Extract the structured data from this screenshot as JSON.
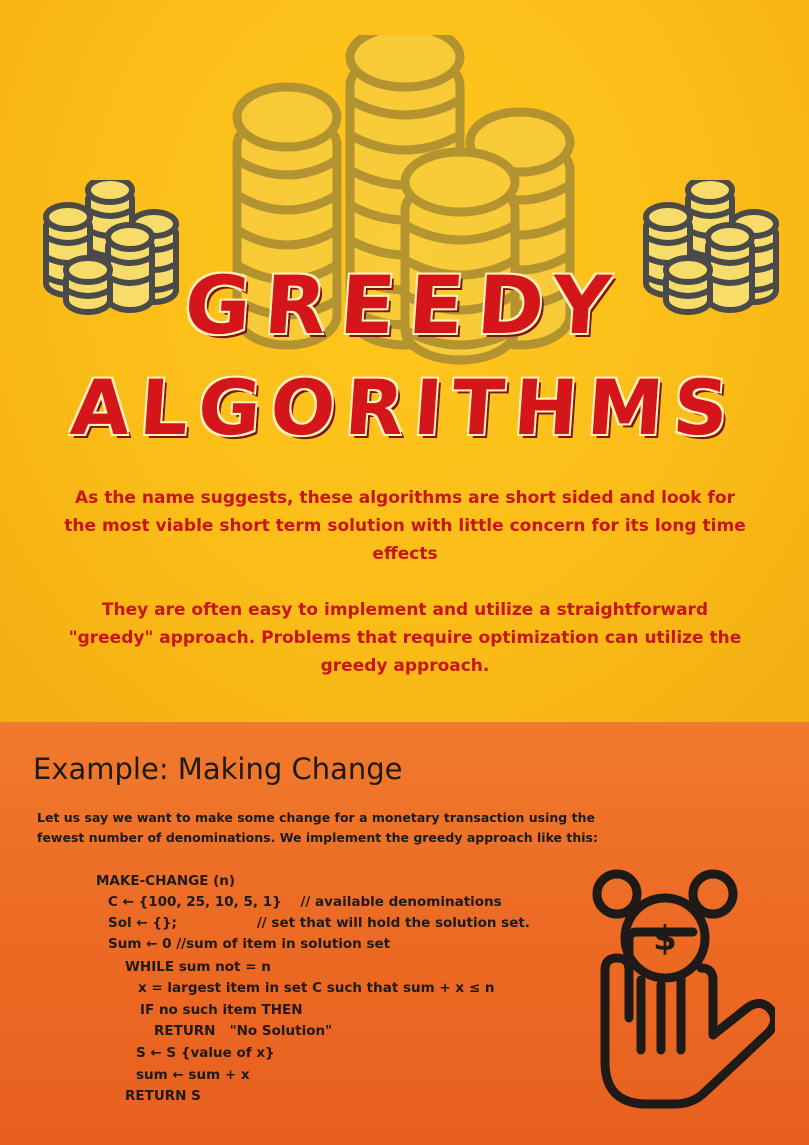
{
  "title": {
    "line1": "GREEDY",
    "line2": "ALGORITHMS"
  },
  "intro": {
    "paragraph1": "As the name suggests, these algorithms are short sided and look for the most viable short term solution with little concern for its long time effects",
    "paragraph2": "They are often easy to implement and utilize a straightforward \"greedy\" approach. Problems that require optimization can utilize the greedy approach."
  },
  "example": {
    "heading": "Example: Making Change",
    "description": "Let us say we want to make some change for a monetary transaction using the fewest number of denominations. We implement the greedy approach like this:",
    "code": [
      "MAKE-CHANGE (n)",
      "C ← {100, 25, 10, 5, 1}    // available denominations",
      "Sol ← {};                 // set that will hold the solution set.",
      "Sum ← 0 //sum of item in solution set",
      "WHILE sum not = n",
      "x = largest item in set C such that sum + x ≤ n",
      "IF no such item THEN",
      "RETURN   \"No Solution\"",
      "S ← S {value of x}",
      "sum ← sum + x",
      "RETURN S"
    ]
  },
  "icons": {
    "coin_stacks": "coin-stack-icon",
    "hand_coin": "hand-holding-dollar-coin-icon"
  },
  "colors": {
    "top_background": "#fbbd18",
    "bottom_background": "#ec6a24",
    "title_red": "#d4151a",
    "text_red": "#c8141b",
    "dark_text": "#1e1a18"
  }
}
